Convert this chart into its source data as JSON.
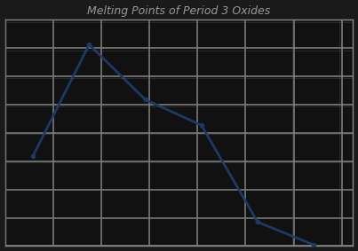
{
  "title": "Melting Points of Period 3 Oxides",
  "x_values": [
    0,
    1,
    2,
    3,
    4,
    5
  ],
  "y_values": [
    1275,
    2852,
    2072,
    1710,
    340,
    17
  ],
  "line_color": "#1F3864",
  "marker_color": "#1F3864",
  "marker_size": 3,
  "line_width": 1.5,
  "ylim": [
    0,
    3200
  ],
  "xlim": [
    -0.5,
    5.7
  ],
  "grid_color": "#888888",
  "grid_color2": "#555555",
  "bg_color": "#1a1a1a",
  "plot_bg_color": "#111111",
  "title_color": "#999999",
  "title_fontsize": 9,
  "ytick_count": 9,
  "xtick_count": 8,
  "figsize": [
    4.03,
    2.83
  ],
  "dpi": 100
}
